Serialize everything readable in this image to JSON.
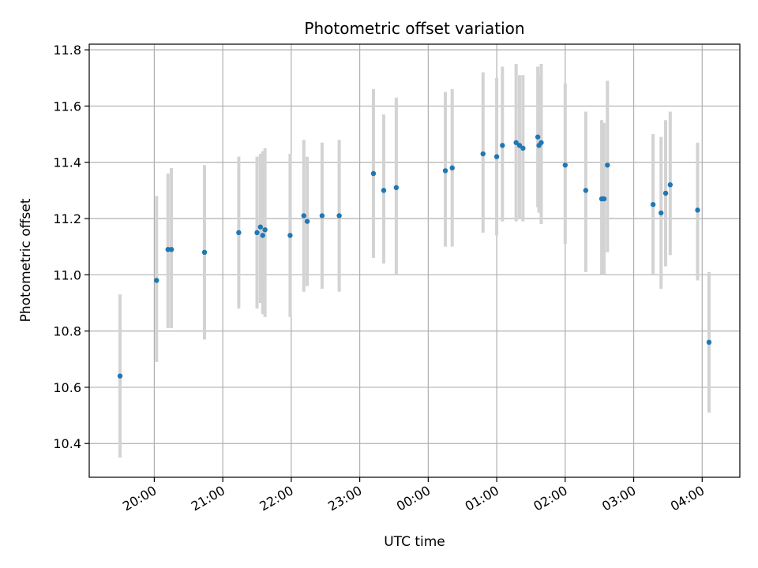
{
  "chart_data": {
    "type": "scatter",
    "title": "Photometric offset variation",
    "xlabel": "UTC time",
    "ylabel": "Photometric offset",
    "x_tick_labels": [
      "20:00",
      "21:00",
      "22:00",
      "23:00",
      "00:00",
      "01:00",
      "02:00",
      "03:00",
      "04:00"
    ],
    "x_tick_hours": [
      20,
      21,
      22,
      23,
      24,
      25,
      26,
      27,
      28
    ],
    "xlim_hours": [
      19.05,
      28.55
    ],
    "y_ticks": [
      10.4,
      10.6,
      10.8,
      11.0,
      11.2,
      11.4,
      11.6,
      11.8
    ],
    "y_tick_labels": [
      "10.4",
      "10.6",
      "10.8",
      "11.0",
      "11.2",
      "11.4",
      "11.6",
      "11.8"
    ],
    "ylim": [
      10.28,
      11.82
    ],
    "grid": true,
    "colors": {
      "points": "#1f77b4",
      "errorbars": "#d3d3d3"
    },
    "points": [
      {
        "x": "19:30",
        "y": 10.64,
        "lo": 10.35,
        "hi": 10.93
      },
      {
        "x": "20:02",
        "y": 10.98,
        "lo": 10.69,
        "hi": 11.28
      },
      {
        "x": "20:12",
        "y": 11.09,
        "lo": 10.81,
        "hi": 11.36
      },
      {
        "x": "20:15",
        "y": 11.09,
        "lo": 10.81,
        "hi": 11.38
      },
      {
        "x": "20:44",
        "y": 11.08,
        "lo": 10.77,
        "hi": 11.39
      },
      {
        "x": "21:14",
        "y": 11.15,
        "lo": 10.88,
        "hi": 11.42
      },
      {
        "x": "21:30",
        "y": 11.15,
        "lo": 10.88,
        "hi": 11.42
      },
      {
        "x": "21:33",
        "y": 11.17,
        "lo": 10.9,
        "hi": 11.43
      },
      {
        "x": "21:35",
        "y": 11.14,
        "lo": 10.86,
        "hi": 11.44
      },
      {
        "x": "21:37",
        "y": 11.16,
        "lo": 10.85,
        "hi": 11.45
      },
      {
        "x": "21:59",
        "y": 11.14,
        "lo": 10.85,
        "hi": 11.43
      },
      {
        "x": "22:11",
        "y": 11.21,
        "lo": 10.94,
        "hi": 11.48
      },
      {
        "x": "22:14",
        "y": 11.19,
        "lo": 10.96,
        "hi": 11.42
      },
      {
        "x": "22:27",
        "y": 11.21,
        "lo": 10.95,
        "hi": 11.47
      },
      {
        "x": "22:42",
        "y": 11.21,
        "lo": 10.94,
        "hi": 11.48
      },
      {
        "x": "23:12",
        "y": 11.36,
        "lo": 11.06,
        "hi": 11.66
      },
      {
        "x": "23:21",
        "y": 11.3,
        "lo": 11.04,
        "hi": 11.57
      },
      {
        "x": "23:32",
        "y": 11.31,
        "lo": 11.0,
        "hi": 11.63
      },
      {
        "x": "00:15",
        "y": 11.37,
        "lo": 11.1,
        "hi": 11.65
      },
      {
        "x": "00:21",
        "y": 11.38,
        "lo": 11.1,
        "hi": 11.66
      },
      {
        "x": "00:48",
        "y": 11.43,
        "lo": 11.15,
        "hi": 11.72
      },
      {
        "x": "01:00",
        "y": 11.42,
        "lo": 11.14,
        "hi": 11.7
      },
      {
        "x": "01:05",
        "y": 11.46,
        "lo": 11.19,
        "hi": 11.74
      },
      {
        "x": "01:17",
        "y": 11.47,
        "lo": 11.19,
        "hi": 11.75
      },
      {
        "x": "01:20",
        "y": 11.46,
        "lo": 11.2,
        "hi": 11.71
      },
      {
        "x": "01:23",
        "y": 11.45,
        "lo": 11.19,
        "hi": 11.71
      },
      {
        "x": "01:36",
        "y": 11.49,
        "lo": 11.24,
        "hi": 11.74
      },
      {
        "x": "01:37",
        "y": 11.46,
        "lo": 11.22,
        "hi": 11.71
      },
      {
        "x": "01:39",
        "y": 11.47,
        "lo": 11.18,
        "hi": 11.75
      },
      {
        "x": "02:00",
        "y": 11.39,
        "lo": 11.11,
        "hi": 11.68
      },
      {
        "x": "02:18",
        "y": 11.3,
        "lo": 11.01,
        "hi": 11.58
      },
      {
        "x": "02:32",
        "y": 11.27,
        "lo": 11.0,
        "hi": 11.55
      },
      {
        "x": "02:34",
        "y": 11.27,
        "lo": 11.0,
        "hi": 11.54
      },
      {
        "x": "02:37",
        "y": 11.39,
        "lo": 11.08,
        "hi": 11.69
      },
      {
        "x": "03:17",
        "y": 11.25,
        "lo": 11.0,
        "hi": 11.5
      },
      {
        "x": "03:24",
        "y": 11.22,
        "lo": 10.95,
        "hi": 11.49
      },
      {
        "x": "03:28",
        "y": 11.29,
        "lo": 11.03,
        "hi": 11.55
      },
      {
        "x": "03:32",
        "y": 11.32,
        "lo": 11.07,
        "hi": 11.58
      },
      {
        "x": "03:56",
        "y": 11.23,
        "lo": 10.98,
        "hi": 11.47
      },
      {
        "x": "04:06",
        "y": 10.76,
        "lo": 10.51,
        "hi": 11.01
      }
    ]
  }
}
